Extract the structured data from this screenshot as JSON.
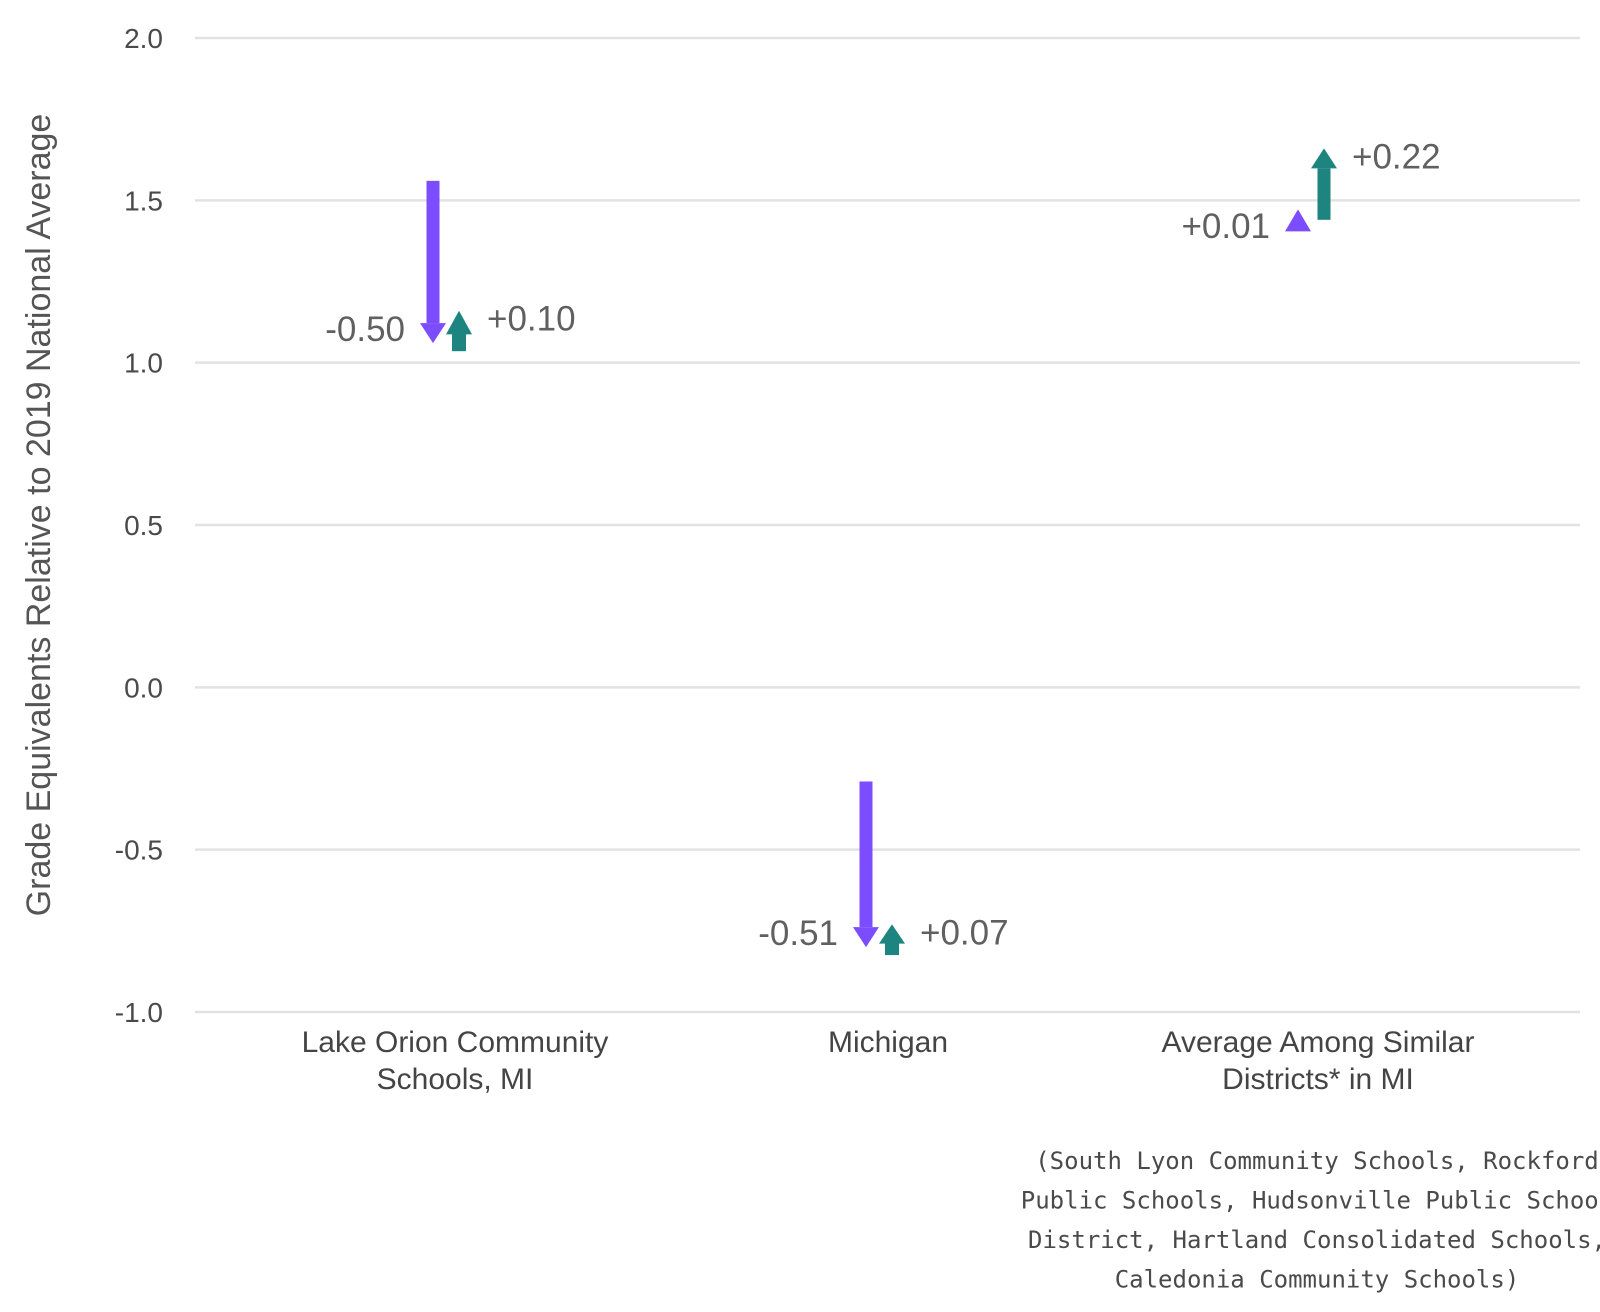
{
  "chart_data": {
    "type": "arrow",
    "ylabel": "Grade Equivalents Relative to 2019 National Average",
    "ylim": [
      -1.0,
      2.0
    ],
    "yticks": [
      "2.0",
      "1.5",
      "1.0",
      "0.5",
      "0.0",
      "-0.5",
      "-1.0"
    ],
    "grid": true,
    "colors": {
      "decline": "#7c4dff",
      "recovery": "#1e847f"
    },
    "categories": [
      {
        "label_lines": [
          "Lake Orion Community",
          "Schools, MI"
        ],
        "start": 1.56,
        "decline": {
          "label": "-0.50",
          "end": 1.06
        },
        "recovery": {
          "label": "+0.10",
          "start": 1.06,
          "end": 1.16
        }
      },
      {
        "label_lines": [
          "Michigan"
        ],
        "start": -0.29,
        "decline": {
          "label": "-0.51",
          "end": -0.8
        },
        "recovery": {
          "label": "+0.07",
          "start": -0.8,
          "end": -0.73
        }
      },
      {
        "label_lines": [
          "Average Among Similar",
          "Districts* in MI"
        ],
        "note_lines": [
          "(South Lyon Community Schools, Rockford",
          "Public Schools, Hudsonville Public School",
          "District, Hartland Consolidated Schools,",
          "Caledonia Community Schools)"
        ],
        "start": 1.43,
        "decline": {
          "label": "+0.01",
          "end": 1.44
        },
        "recovery": {
          "label": "+0.22",
          "start": 1.44,
          "end": 1.66
        }
      }
    ]
  }
}
